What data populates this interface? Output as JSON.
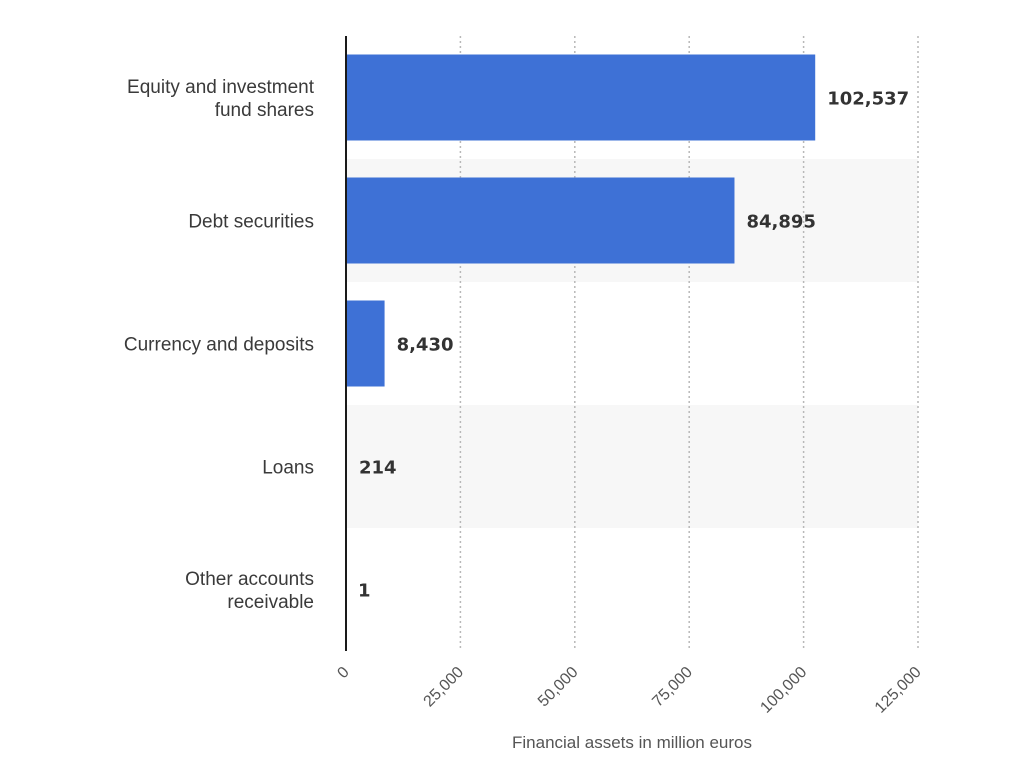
{
  "chart_data": {
    "type": "bar",
    "orientation": "horizontal",
    "categories": [
      [
        "Equity and investment",
        "fund shares"
      ],
      [
        "Debt securities"
      ],
      [
        "Currency and deposits"
      ],
      [
        "Loans"
      ],
      [
        "Other accounts",
        "receivable"
      ]
    ],
    "values": [
      102537,
      84895,
      8430,
      214,
      1
    ],
    "value_labels": [
      "102,537",
      "84,895",
      "8,430",
      "214",
      "1"
    ],
    "xlabel": "Financial assets in million euros",
    "xlim": [
      0,
      125000
    ],
    "xticks": [
      0,
      25000,
      50000,
      75000,
      100000,
      125000
    ],
    "xtick_labels": [
      "0",
      "25,000",
      "50,000",
      "75,000",
      "100,000",
      "125,000"
    ],
    "grid": "vertical-dotted",
    "bar_color": "#3e71d6",
    "band_color": "#f7f7f7"
  }
}
